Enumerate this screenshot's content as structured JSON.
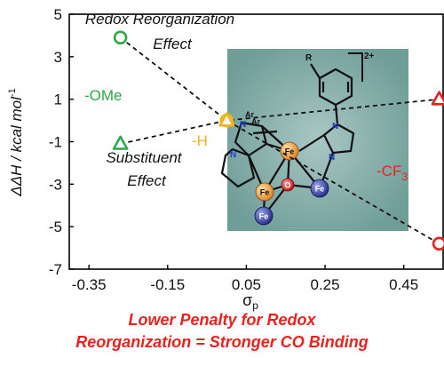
{
  "chart_data": {
    "type": "scatter",
    "xlabel": "σ",
    "xlabel_sub": "p",
    "ylabel": "ΔΔH / kcal mol",
    "ylabel_sup": "-1",
    "xlim": [
      -0.4,
      0.55
    ],
    "ylim": [
      -7,
      5
    ],
    "x_ticks": [
      "-0.35",
      "-0.15",
      "0.05",
      "0.25",
      "0.45"
    ],
    "y_ticks": [
      "5",
      "3",
      "1",
      "-1",
      "-3",
      "-5",
      "-7"
    ],
    "series": [
      {
        "name": "Redox Reorganization Effect",
        "marker": "circle",
        "points": [
          {
            "x": -0.27,
            "y": 3.9,
            "color": "#2ea84a"
          },
          {
            "x": 0.0,
            "y": 0.0,
            "color": "#f2b31b"
          },
          {
            "x": 0.54,
            "y": -5.8,
            "color": "#e8231f"
          }
        ]
      },
      {
        "name": "Substituent Effect",
        "marker": "triangle",
        "points": [
          {
            "x": -0.27,
            "y": -1.1,
            "color": "#2ea84a"
          },
          {
            "x": 0.0,
            "y": 0.0,
            "color": "#f2b31b"
          },
          {
            "x": 0.54,
            "y": 1.0,
            "color": "#e8231f"
          }
        ]
      }
    ],
    "annotations": {
      "redox_line1": "Redox Reorganization",
      "redox_line2": "Effect",
      "subst_line1": "Substituent",
      "subst_line2": "Effect",
      "ome": "-OMe",
      "h": "-H",
      "cf3": "-CF",
      "cf3_sub": "3"
    },
    "structure_labels": {
      "r": "R",
      "charge": "2+",
      "ar1": "Ar",
      "ar2": "Ar",
      "n_atoms": [
        "N",
        "N",
        "N",
        "N"
      ],
      "fe_atoms": [
        "Fe",
        "Fe",
        "Fe",
        "Fe"
      ],
      "o_atom": "O"
    },
    "colors": {
      "ome": "#2ea84a",
      "h": "#f2b31b",
      "cf3": "#e8231f",
      "inset_bg": "#7fa9a5",
      "fe_orange": "#f29a3a",
      "fe_blue": "#3d47a8",
      "n_blue": "#1f3fcf",
      "o_red": "#d82020"
    },
    "grid": false,
    "legend": "none"
  },
  "caption": {
    "line1": "Lower Penalty for Redox",
    "line2": "Reorganization = Stronger CO Binding"
  }
}
